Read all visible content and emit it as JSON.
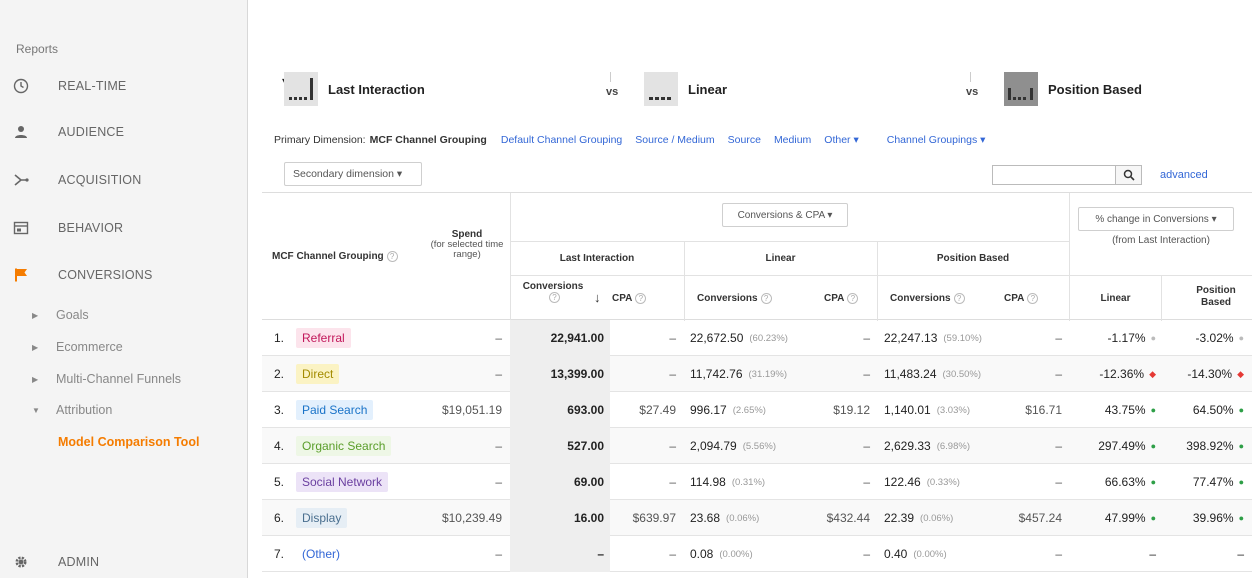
{
  "sidebar": {
    "reports_label": "Reports",
    "items": [
      {
        "label": "REAL-TIME",
        "icon": "clock-icon"
      },
      {
        "label": "AUDIENCE",
        "icon": "person-icon"
      },
      {
        "label": "ACQUISITION",
        "icon": "acquisition-icon"
      },
      {
        "label": "BEHAVIOR",
        "icon": "behavior-icon"
      },
      {
        "label": "CONVERSIONS",
        "icon": "flag-icon"
      }
    ],
    "subitems": [
      {
        "label": "Goals",
        "arrow": "▶"
      },
      {
        "label": "Ecommerce",
        "arrow": "▶"
      },
      {
        "label": "Multi-Channel Funnels",
        "arrow": "▶"
      },
      {
        "label": "Attribution",
        "arrow": "▼"
      }
    ],
    "active_subitem": "Model Comparison Tool",
    "admin_label": "ADMIN"
  },
  "models": {
    "model1": "Last Interaction",
    "model2": "Linear",
    "model3": "Position Based",
    "vs": "vs",
    "dropdown_arrow": "▾"
  },
  "primary_dimension": {
    "label": "Primary Dimension:",
    "current": "MCF Channel Grouping",
    "links": [
      "Default Channel Grouping",
      "Source / Medium",
      "Source",
      "Medium",
      "Other ▾",
      "Channel Groupings ▾"
    ]
  },
  "secondary_dimension": "Secondary dimension  ▾",
  "search": {
    "placeholder": "",
    "advanced": "advanced"
  },
  "table": {
    "col_channel": "MCF Channel Grouping",
    "col_spend": "Spend",
    "col_spend_sub": "(for selected time range)",
    "metric_select": "Conversions & CPA  ▾",
    "group_last": "Last Interaction",
    "group_linear": "Linear",
    "group_position": "Position Based",
    "col_conversions": "Conversions",
    "col_cpa": "CPA",
    "change_select": "% change in Conversions  ▾",
    "change_sub": "(from Last Interaction)",
    "change_linear": "Linear",
    "change_position": "Position Based",
    "sort_arrow": "↓",
    "help": "?",
    "rows": [
      {
        "idx": "1.",
        "channel": "Referral",
        "chip_bg": "#fce4ec",
        "chip_fg": "#c2185b",
        "spend": "–",
        "lc": "22,941.00",
        "lcpa": "–",
        "lin": "22,672.50",
        "linpct": "(60.23%)",
        "lincpa": "–",
        "pos": "22,247.13",
        "pospct": "(59.10%)",
        "poscpa": "–",
        "chlin": "-1.17%",
        "chlin_dot": "neutral",
        "chpos": "-3.02%",
        "chpos_dot": "neutral"
      },
      {
        "idx": "2.",
        "channel": "Direct",
        "chip_bg": "#fbf3c4",
        "chip_fg": "#a38b00",
        "spend": "–",
        "lc": "13,399.00",
        "lcpa": "–",
        "lin": "11,742.76",
        "linpct": "(31.19%)",
        "lincpa": "–",
        "pos": "11,483.24",
        "pospct": "(30.50%)",
        "poscpa": "–",
        "chlin": "-12.36%",
        "chlin_dot": "down",
        "chpos": "-14.30%",
        "chpos_dot": "down"
      },
      {
        "idx": "3.",
        "channel": "Paid Search",
        "chip_bg": "#e3f0fd",
        "chip_fg": "#1a73c8",
        "spend": "$19,051.19",
        "lc": "693.00",
        "lcpa": "$27.49",
        "lin": "996.17",
        "linpct": "(2.65%)",
        "lincpa": "$19.12",
        "pos": "1,140.01",
        "pospct": "(3.03%)",
        "poscpa": "$16.71",
        "chlin": "43.75%",
        "chlin_dot": "up",
        "chpos": "64.50%",
        "chpos_dot": "up"
      },
      {
        "idx": "4.",
        "channel": "Organic Search",
        "chip_bg": "#eef7e6",
        "chip_fg": "#5a9e2a",
        "spend": "–",
        "lc": "527.00",
        "lcpa": "–",
        "lin": "2,094.79",
        "linpct": "(5.56%)",
        "lincpa": "–",
        "pos": "2,629.33",
        "pospct": "(6.98%)",
        "poscpa": "–",
        "chlin": "297.49%",
        "chlin_dot": "up",
        "chpos": "398.92%",
        "chpos_dot": "up"
      },
      {
        "idx": "5.",
        "channel": "Social Network",
        "chip_bg": "#ece3f7",
        "chip_fg": "#6a3fa0",
        "spend": "–",
        "lc": "69.00",
        "lcpa": "–",
        "lin": "114.98",
        "linpct": "(0.31%)",
        "lincpa": "–",
        "pos": "122.46",
        "pospct": "(0.33%)",
        "poscpa": "–",
        "chlin": "66.63%",
        "chlin_dot": "up",
        "chpos": "77.47%",
        "chpos_dot": "up"
      },
      {
        "idx": "6.",
        "channel": "Display",
        "chip_bg": "#e6eef5",
        "chip_fg": "#4a6f8f",
        "spend": "$10,239.49",
        "lc": "16.00",
        "lcpa": "$639.97",
        "lin": "23.68",
        "linpct": "(0.06%)",
        "lincpa": "$432.44",
        "pos": "22.39",
        "pospct": "(0.06%)",
        "poscpa": "$457.24",
        "chlin": "47.99%",
        "chlin_dot": "up",
        "chpos": "39.96%",
        "chpos_dot": "up"
      },
      {
        "idx": "7.",
        "channel": "(Other)",
        "chip_bg": "transparent",
        "chip_fg": "#3367d6",
        "spend": "–",
        "lc": "–",
        "lcpa": "–",
        "lin": "0.08",
        "linpct": "(0.00%)",
        "lincpa": "–",
        "pos": "0.40",
        "pospct": "(0.00%)",
        "poscpa": "–",
        "chlin": "–",
        "chlin_dot": "none",
        "chpos": "–",
        "chpos_dot": "none"
      }
    ]
  }
}
